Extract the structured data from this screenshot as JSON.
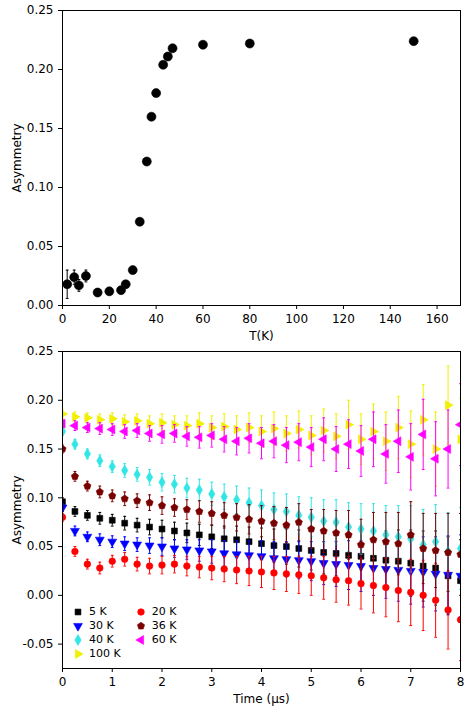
{
  "chart_data": [
    {
      "type": "scatter",
      "x_label": "T(K)",
      "y_label": "Asymmetry",
      "x": [
        2,
        5,
        7,
        10,
        15,
        20,
        25,
        27,
        30,
        33,
        36,
        38,
        40,
        43,
        45,
        47,
        60,
        80,
        150
      ],
      "values": [
        0.018,
        0.024,
        0.017,
        0.025,
        0.011,
        0.012,
        0.013,
        0.018,
        0.03,
        0.071,
        0.122,
        0.16,
        0.18,
        0.204,
        0.211,
        0.218,
        0.221,
        0.222,
        0.224
      ],
      "errors": [
        0.012,
        0.006,
        0.005,
        0.005,
        0.003,
        0.003,
        0.003,
        0.003,
        0.003,
        0.002,
        0.002,
        0.002,
        0.002,
        0.002,
        0.002,
        0.002,
        0.002,
        0.002,
        0.002
      ],
      "color": "#000000",
      "marker": "circle",
      "xlim": [
        0,
        170
      ],
      "xticks": [
        0,
        20,
        40,
        60,
        80,
        100,
        120,
        140,
        160
      ],
      "ylim": [
        0,
        0.25
      ],
      "yticks": [
        {
          "value": 0,
          "label": "0.00"
        },
        {
          "value": 0.05,
          "label": "0.05"
        },
        {
          "value": 0.1,
          "label": "0.10"
        },
        {
          "value": 0.15,
          "label": "0.15"
        },
        {
          "value": 0.2,
          "label": "0.20"
        },
        {
          "value": 0.25,
          "label": "0.25"
        }
      ]
    },
    {
      "type": "scatter",
      "x_label": "Time (μs)",
      "y_label": "Asymmetry",
      "legend": "bottom-left",
      "x": [
        0,
        0.25,
        0.5,
        0.75,
        1,
        1.25,
        1.5,
        1.75,
        2,
        2.25,
        2.5,
        2.75,
        3,
        3.25,
        3.5,
        3.75,
        4,
        4.25,
        4.5,
        4.75,
        5,
        5.25,
        5.5,
        5.75,
        6,
        6.25,
        6.5,
        6.75,
        7,
        7.25,
        7.5,
        7.75,
        8
      ],
      "series": [
        {
          "name": "5 K",
          "color": "#000000",
          "marker": "square",
          "values": [
            0.096,
            0.086,
            0.082,
            0.079,
            0.077,
            0.074,
            0.072,
            0.07,
            0.068,
            0.066,
            0.064,
            0.062,
            0.06,
            0.058,
            0.057,
            0.055,
            0.053,
            0.051,
            0.05,
            0.048,
            0.046,
            0.044,
            0.043,
            0.041,
            0.04,
            0.038,
            0.036,
            0.035,
            0.033,
            0.03,
            0.028,
            0.02,
            0.015
          ],
          "errors": [
            0.004,
            0.005,
            0.005,
            0.006,
            0.006,
            0.007,
            0.007,
            0.008,
            0.009,
            0.009,
            0.01,
            0.011,
            0.012,
            0.013,
            0.014,
            0.015,
            0.016,
            0.017,
            0.018,
            0.019,
            0.02,
            0.022,
            0.023,
            0.025,
            0.026,
            0.028,
            0.03,
            0.032,
            0.034,
            0.036,
            0.038,
            0.04,
            0.042
          ]
        },
        {
          "name": "30 K",
          "color": "#0000ff",
          "marker": "triangle-down",
          "values": [
            0.09,
            0.066,
            0.06,
            0.057,
            0.055,
            0.053,
            0.052,
            0.051,
            0.05,
            0.048,
            0.047,
            0.046,
            0.045,
            0.043,
            0.042,
            0.041,
            0.04,
            0.038,
            0.037,
            0.036,
            0.035,
            0.033,
            0.032,
            0.031,
            0.03,
            0.028,
            0.027,
            0.026,
            0.025,
            0.024,
            0.022,
            0.021,
            0.02
          ],
          "errors": [
            0.004,
            0.005,
            0.005,
            0.006,
            0.006,
            0.007,
            0.007,
            0.008,
            0.009,
            0.009,
            0.01,
            0.011,
            0.012,
            0.013,
            0.014,
            0.015,
            0.016,
            0.017,
            0.018,
            0.019,
            0.02,
            0.022,
            0.023,
            0.025,
            0.026,
            0.028,
            0.03,
            0.032,
            0.034,
            0.036,
            0.038,
            0.04,
            0.042
          ]
        },
        {
          "name": "40 K",
          "color": "#33e6e6",
          "marker": "diamond",
          "values": [
            0.168,
            0.155,
            0.145,
            0.138,
            0.132,
            0.128,
            0.124,
            0.121,
            0.116,
            0.114,
            0.11,
            0.108,
            0.104,
            0.101,
            0.098,
            0.095,
            0.092,
            0.088,
            0.086,
            0.082,
            0.08,
            0.076,
            0.075,
            0.07,
            0.068,
            0.066,
            0.062,
            0.06,
            0.058,
            0.052,
            0.055,
            0.045,
            0.048
          ],
          "errors": [
            0.004,
            0.005,
            0.005,
            0.006,
            0.006,
            0.007,
            0.007,
            0.008,
            0.009,
            0.009,
            0.01,
            0.011,
            0.012,
            0.013,
            0.014,
            0.015,
            0.016,
            0.017,
            0.018,
            0.019,
            0.02,
            0.022,
            0.023,
            0.025,
            0.026,
            0.028,
            0.03,
            0.032,
            0.034,
            0.036,
            0.038,
            0.04,
            0.042
          ]
        },
        {
          "name": "100 K",
          "color": "#f0f000",
          "marker": "triangle-right",
          "values": [
            0.186,
            0.183,
            0.182,
            0.18,
            0.181,
            0.178,
            0.179,
            0.176,
            0.177,
            0.175,
            0.174,
            0.176,
            0.172,
            0.173,
            0.17,
            0.172,
            0.168,
            0.171,
            0.166,
            0.17,
            0.164,
            0.169,
            0.163,
            0.175,
            0.16,
            0.168,
            0.158,
            0.172,
            0.155,
            0.18,
            0.15,
            0.195,
            0.16
          ],
          "errors": [
            0.004,
            0.005,
            0.005,
            0.006,
            0.006,
            0.007,
            0.007,
            0.008,
            0.009,
            0.009,
            0.01,
            0.011,
            0.012,
            0.013,
            0.014,
            0.015,
            0.016,
            0.017,
            0.018,
            0.019,
            0.02,
            0.022,
            0.023,
            0.025,
            0.026,
            0.028,
            0.03,
            0.032,
            0.034,
            0.036,
            0.038,
            0.04,
            0.042
          ]
        },
        {
          "name": "20 K",
          "color": "#ff0000",
          "marker": "circle",
          "values": [
            0.08,
            0.045,
            0.032,
            0.028,
            0.035,
            0.037,
            0.032,
            0.03,
            0.031,
            0.032,
            0.03,
            0.029,
            0.028,
            0.027,
            0.026,
            0.025,
            0.024,
            0.023,
            0.022,
            0.021,
            0.02,
            0.018,
            0.016,
            0.015,
            0.012,
            0.01,
            0.008,
            0.005,
            0.003,
            0.0,
            -0.005,
            -0.015,
            -0.025
          ],
          "errors": [
            0.004,
            0.005,
            0.005,
            0.006,
            0.006,
            0.007,
            0.007,
            0.008,
            0.009,
            0.009,
            0.01,
            0.011,
            0.012,
            0.013,
            0.014,
            0.015,
            0.016,
            0.017,
            0.018,
            0.019,
            0.02,
            0.022,
            0.023,
            0.025,
            0.026,
            0.028,
            0.03,
            0.032,
            0.034,
            0.036,
            0.038,
            0.04,
            0.042
          ]
        },
        {
          "name": "36 K",
          "color": "#7a0000",
          "marker": "pentagon",
          "values": [
            0.15,
            0.122,
            0.112,
            0.106,
            0.102,
            0.099,
            0.097,
            0.095,
            0.092,
            0.09,
            0.088,
            0.086,
            0.084,
            0.082,
            0.08,
            0.078,
            0.076,
            0.074,
            0.072,
            0.075,
            0.068,
            0.066,
            0.064,
            0.062,
            0.052,
            0.057,
            0.055,
            0.053,
            0.062,
            0.048,
            0.046,
            0.044,
            0.042
          ],
          "errors": [
            0.004,
            0.005,
            0.005,
            0.006,
            0.006,
            0.007,
            0.007,
            0.008,
            0.009,
            0.009,
            0.01,
            0.011,
            0.012,
            0.013,
            0.014,
            0.015,
            0.016,
            0.017,
            0.018,
            0.019,
            0.02,
            0.022,
            0.023,
            0.025,
            0.026,
            0.028,
            0.03,
            0.032,
            0.034,
            0.036,
            0.038,
            0.04,
            0.042
          ]
        },
        {
          "name": "60 K",
          "color": "#ff00ff",
          "marker": "triangle-left",
          "values": [
            0.176,
            0.174,
            0.172,
            0.171,
            0.17,
            0.168,
            0.169,
            0.166,
            0.165,
            0.166,
            0.163,
            0.162,
            0.164,
            0.16,
            0.158,
            0.161,
            0.156,
            0.158,
            0.154,
            0.157,
            0.152,
            0.16,
            0.15,
            0.155,
            0.148,
            0.16,
            0.145,
            0.158,
            0.142,
            0.165,
            0.14,
            0.15,
            0.175
          ],
          "errors": [
            0.004,
            0.005,
            0.005,
            0.006,
            0.006,
            0.007,
            0.007,
            0.008,
            0.009,
            0.009,
            0.01,
            0.011,
            0.012,
            0.013,
            0.014,
            0.015,
            0.016,
            0.017,
            0.018,
            0.019,
            0.02,
            0.022,
            0.023,
            0.025,
            0.026,
            0.028,
            0.03,
            0.032,
            0.034,
            0.036,
            0.038,
            0.04,
            0.042
          ]
        }
      ],
      "xlim": [
        0,
        8
      ],
      "xticks": [
        0,
        1,
        2,
        3,
        4,
        5,
        6,
        7,
        8
      ],
      "ylim": [
        -0.075,
        0.25
      ],
      "yticks": [
        {
          "value": -0.05,
          "label": "-0.05"
        },
        {
          "value": 0,
          "label": "0.00"
        },
        {
          "value": 0.05,
          "label": "0.05"
        },
        {
          "value": 0.1,
          "label": "0.10"
        },
        {
          "value": 0.15,
          "label": "0.15"
        },
        {
          "value": 0.2,
          "label": "0.20"
        },
        {
          "value": 0.25,
          "label": "0.25"
        }
      ]
    }
  ]
}
